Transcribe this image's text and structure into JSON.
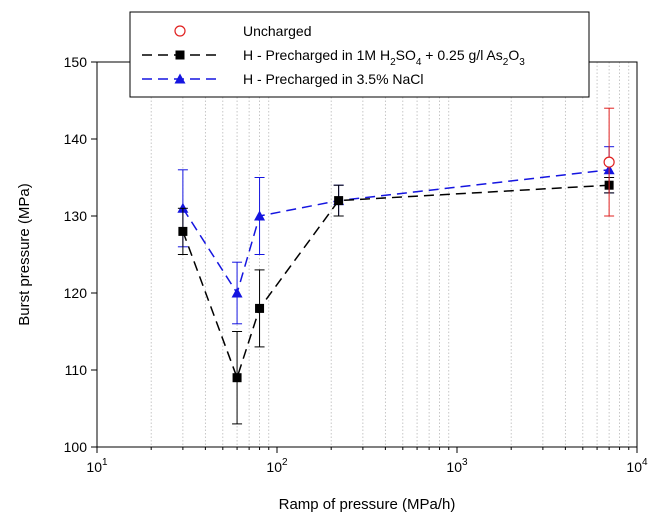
{
  "chart_data": {
    "type": "scatter",
    "xscale": "log",
    "xlim": [
      10,
      10000
    ],
    "ylim": [
      100,
      150
    ],
    "xlabel": "Ramp of pressure (MPa/h)",
    "ylabel": "Burst pressure (MPa)",
    "x_ticks": [
      {
        "base": "10",
        "exp": "1",
        "value": 10
      },
      {
        "base": "10",
        "exp": "2",
        "value": 100
      },
      {
        "base": "10",
        "exp": "3",
        "value": 1000
      },
      {
        "base": "10",
        "exp": "4",
        "value": 10000
      }
    ],
    "y_ticks": [
      "100",
      "110",
      "120",
      "130",
      "140",
      "150"
    ],
    "grid": "vertical minor gridlines (dotted)",
    "legend_position": "top",
    "series": [
      {
        "name": "Uncharged",
        "marker": "open-circle",
        "line": "none",
        "color": "#e0201f",
        "points": [
          {
            "x": 7000,
            "y": 137,
            "err_low": 130,
            "err_high": 144
          }
        ]
      },
      {
        "name_parts": [
          "H - Precharged in 1M H",
          "2",
          "SO",
          "4",
          " + 0.25 g/l As",
          "2",
          "O",
          "3"
        ],
        "marker": "filled-square",
        "line": "dashed",
        "color": "#000000",
        "points": [
          {
            "x": 30,
            "y": 128,
            "err_low": 125,
            "err_high": 131
          },
          {
            "x": 60,
            "y": 109,
            "err_low": 103,
            "err_high": 115
          },
          {
            "x": 80,
            "y": 118,
            "err_low": 113,
            "err_high": 123
          },
          {
            "x": 220,
            "y": 132,
            "err_low": 130,
            "err_high": 134
          },
          {
            "x": 7000,
            "y": 134,
            "err_low": 133,
            "err_high": 135
          }
        ]
      },
      {
        "name": "H - Precharged in 3.5% NaCl",
        "marker": "filled-triangle",
        "line": "dashed",
        "color": "#1515e0",
        "points": [
          {
            "x": 30,
            "y": 131,
            "err_low": 126,
            "err_high": 136
          },
          {
            "x": 60,
            "y": 120,
            "err_low": 116,
            "err_high": 124
          },
          {
            "x": 80,
            "y": 130,
            "err_low": 125,
            "err_high": 135
          },
          {
            "x": 220,
            "y": 132,
            "err_low": 130,
            "err_high": 134
          },
          {
            "x": 7000,
            "y": 136,
            "err_low": 133,
            "err_high": 139
          }
        ]
      }
    ]
  }
}
